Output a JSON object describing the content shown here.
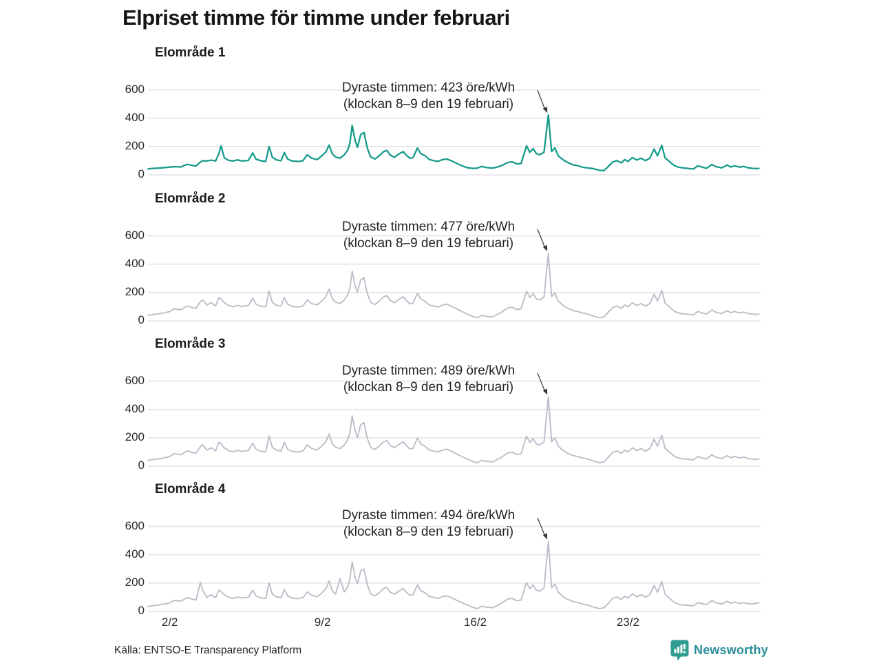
{
  "title": "Elpriset timme för timme under februari",
  "source": "Källa: ENTSO-E Transparency Platform",
  "logo": {
    "text": "Newsworthy",
    "icon": "bar-chart-speech-bubble-icon",
    "icon_color": "#2e9d8f",
    "text_color": "#2a8f9b"
  },
  "colors": {
    "accent_teal": "#169b8b",
    "series_gray": "#bdbdca",
    "gridline": "#e4e4e8",
    "text": "#222222",
    "arrow": "#333333"
  },
  "chart_data": {
    "type": "line",
    "title": "Elpriset timme för timme under februari",
    "xlabel": "",
    "ylabel": "öre/kWh",
    "x_unit": "dagar från 1 februari (timvärden)",
    "ylim": [
      0,
      650
    ],
    "y_ticks": [
      0,
      200,
      400,
      600
    ],
    "x_ticks": [
      {
        "day": 1,
        "label": "2/2"
      },
      {
        "day": 8,
        "label": "9/2"
      },
      {
        "day": 15,
        "label": "16/2"
      },
      {
        "day": 22,
        "label": "23/2"
      }
    ],
    "grid": "horizontal-only",
    "legend": "none",
    "x": [
      0,
      0.2,
      0.5,
      0.8,
      1.0,
      1.2,
      1.5,
      1.8,
      2.0,
      2.2,
      2.4,
      2.5,
      2.7,
      2.9,
      3.1,
      3.25,
      3.35,
      3.5,
      3.7,
      3.9,
      4.1,
      4.3,
      4.6,
      4.8,
      4.95,
      5.2,
      5.4,
      5.55,
      5.7,
      5.9,
      6.1,
      6.25,
      6.4,
      6.6,
      6.9,
      7.1,
      7.3,
      7.5,
      7.75,
      7.95,
      8.15,
      8.3,
      8.45,
      8.6,
      8.8,
      9.0,
      9.15,
      9.25,
      9.36,
      9.5,
      9.6,
      9.75,
      9.9,
      10.05,
      10.2,
      10.4,
      10.6,
      10.8,
      10.95,
      11.1,
      11.3,
      11.5,
      11.7,
      11.85,
      12.0,
      12.15,
      12.35,
      12.5,
      12.7,
      12.9,
      13.1,
      13.3,
      13.5,
      13.7,
      13.9,
      14.1,
      14.3,
      14.6,
      14.9,
      15.1,
      15.3,
      15.5,
      15.8,
      16.0,
      16.2,
      16.5,
      16.7,
      16.9,
      17.1,
      17.35,
      17.5,
      17.65,
      17.8,
      17.95,
      18.15,
      18.35,
      18.5,
      18.65,
      18.8,
      19.0,
      19.2,
      19.5,
      19.7,
      19.9,
      20.1,
      20.4,
      20.7,
      20.9,
      21.1,
      21.3,
      21.5,
      21.7,
      21.85,
      22.0,
      22.2,
      22.4,
      22.6,
      22.8,
      23.0,
      23.2,
      23.35,
      23.55,
      23.7,
      23.9,
      24.1,
      24.3,
      24.5,
      24.8,
      25.0,
      25.2,
      25.4,
      25.6,
      25.85,
      26.0,
      26.3,
      26.55,
      26.7,
      26.9,
      27.1,
      27.3,
      27.5,
      27.7,
      27.9,
      28.0
    ],
    "panels": [
      {
        "title": "Elområde 1",
        "annotation_line1": "Dyraste timmen: 423 öre/kWh",
        "annotation_line2": "(klockan 8–9 den 19 februari)",
        "max_value": 423,
        "max_day": 18.35,
        "series_color": "#169b8b",
        "values": [
          42,
          45,
          48,
          52,
          55,
          58,
          56,
          75,
          68,
          62,
          90,
          100,
          98,
          104,
          98,
          150,
          205,
          120,
          102,
          98,
          106,
          98,
          102,
          155,
          112,
          98,
          96,
          200,
          125,
          105,
          100,
          158,
          112,
          98,
          95,
          100,
          142,
          118,
          108,
          132,
          162,
          210,
          148,
          126,
          118,
          142,
          175,
          220,
          350,
          240,
          195,
          285,
          300,
          190,
          128,
          112,
          135,
          165,
          172,
          140,
          125,
          148,
          165,
          138,
          118,
          122,
          190,
          150,
          135,
          108,
          100,
          96,
          108,
          112,
          100,
          85,
          70,
          52,
          45,
          48,
          60,
          52,
          48,
          55,
          65,
          88,
          92,
          78,
          80,
          205,
          160,
          185,
          150,
          142,
          160,
          423,
          165,
          190,
          135,
          110,
          90,
          70,
          65,
          55,
          50,
          44,
          32,
          30,
          60,
          92,
          100,
          85,
          108,
          95,
          122,
          105,
          118,
          100,
          118,
          182,
          135,
          208,
          120,
          95,
          68,
          55,
          50,
          44,
          42,
          64,
          55,
          46,
          74,
          60,
          50,
          70,
          56,
          64,
          55,
          60,
          50,
          46,
          44,
          46
        ]
      },
      {
        "title": "Elområde 2",
        "annotation_line1": "Dyraste timmen: 477 öre/kWh",
        "annotation_line2": "(klockan 8–9 den 19 februari)",
        "max_value": 477,
        "max_day": 18.35,
        "series_color": "#bdbdca",
        "values": [
          40,
          44,
          50,
          58,
          66,
          85,
          78,
          105,
          95,
          88,
          135,
          148,
          112,
          128,
          105,
          165,
          155,
          128,
          108,
          100,
          110,
          102,
          108,
          160,
          118,
          102,
          100,
          210,
          130,
          110,
          105,
          165,
          118,
          102,
          98,
          105,
          148,
          122,
          112,
          138,
          170,
          225,
          155,
          132,
          122,
          148,
          182,
          230,
          350,
          245,
          200,
          290,
          305,
          195,
          132,
          115,
          140,
          170,
          178,
          145,
          128,
          152,
          170,
          142,
          120,
          125,
          195,
          155,
          138,
          112,
          104,
          98,
          112,
          118,
          104,
          88,
          72,
          50,
          30,
          22,
          40,
          32,
          28,
          45,
          60,
          92,
          96,
          80,
          85,
          210,
          165,
          192,
          155,
          148,
          168,
          477,
          170,
          198,
          140,
          112,
          92,
          72,
          66,
          56,
          50,
          35,
          22,
          28,
          62,
          95,
          105,
          88,
          112,
          98,
          128,
          108,
          122,
          104,
          122,
          188,
          140,
          215,
          125,
          98,
          70,
          56,
          50,
          45,
          42,
          66,
          56,
          48,
          78,
          62,
          52,
          72,
          58,
          66,
          56,
          62,
          52,
          48,
          45,
          48
        ]
      },
      {
        "title": "Elområde 3",
        "annotation_line1": "Dyraste timmen: 489 öre/kWh",
        "annotation_line2": "(klockan 8–9 den 19 februari)",
        "max_value": 489,
        "max_day": 18.35,
        "series_color": "#bdbdca",
        "values": [
          42,
          46,
          52,
          60,
          68,
          88,
          80,
          108,
          98,
          90,
          138,
          150,
          114,
          130,
          108,
          168,
          158,
          130,
          110,
          102,
          112,
          104,
          110,
          162,
          120,
          104,
          102,
          212,
          132,
          112,
          107,
          168,
          120,
          104,
          100,
          107,
          150,
          124,
          114,
          140,
          172,
          228,
          158,
          134,
          124,
          150,
          185,
          232,
          355,
          248,
          202,
          292,
          308,
          198,
          134,
          117,
          142,
          172,
          180,
          147,
          130,
          154,
          172,
          144,
          122,
          127,
          198,
          157,
          140,
          114,
          106,
          100,
          114,
          120,
          106,
          90,
          74,
          52,
          32,
          24,
          42,
          34,
          30,
          47,
          62,
          94,
          98,
          82,
          87,
          212,
          167,
          194,
          157,
          150,
          170,
          489,
          172,
          200,
          142,
          114,
          94,
          74,
          68,
          58,
          52,
          37,
          24,
          30,
          64,
          97,
          107,
          90,
          114,
          100,
          130,
          110,
          124,
          106,
          124,
          190,
          142,
          217,
          127,
          100,
          72,
          58,
          52,
          47,
          44,
          68,
          58,
          50,
          80,
          64,
          54,
          74,
          60,
          68,
          58,
          64,
          54,
          50,
          47,
          50
        ]
      },
      {
        "title": "Elområde 4",
        "annotation_line1": "Dyraste timmen: 494 öre/kWh",
        "annotation_line2": "(klockan 8–9 den 19 februari)",
        "max_value": 494,
        "max_day": 18.35,
        "series_color": "#bdbdca",
        "values": [
          35,
          40,
          46,
          54,
          60,
          78,
          72,
          98,
          88,
          80,
          205,
          150,
          100,
          118,
          96,
          150,
          140,
          118,
          100,
          92,
          102,
          95,
          100,
          150,
          110,
          95,
          92,
          200,
          122,
          102,
          98,
          155,
          110,
          95,
          90,
          98,
          138,
          114,
          104,
          128,
          160,
          215,
          145,
          122,
          230,
          138,
          172,
          225,
          350,
          240,
          195,
          285,
          300,
          190,
          125,
          108,
          132,
          162,
          170,
          136,
          122,
          145,
          162,
          135,
          114,
          118,
          188,
          148,
          132,
          106,
          98,
          92,
          106,
          110,
          98,
          82,
          68,
          48,
          28,
          20,
          38,
          30,
          26,
          42,
          58,
          88,
          92,
          76,
          80,
          205,
          160,
          188,
          150,
          144,
          164,
          494,
          166,
          194,
          136,
          108,
          88,
          68,
          62,
          52,
          46,
          32,
          20,
          26,
          58,
          92,
          102,
          85,
          108,
          94,
          124,
          104,
          118,
          100,
          118,
          184,
          136,
          210,
          122,
          94,
          66,
          52,
          46,
          42,
          40,
          62,
          55,
          48,
          78,
          62,
          52,
          72,
          58,
          66,
          56,
          62,
          55,
          52,
          58,
          62
        ]
      }
    ]
  },
  "layout_note": ""
}
